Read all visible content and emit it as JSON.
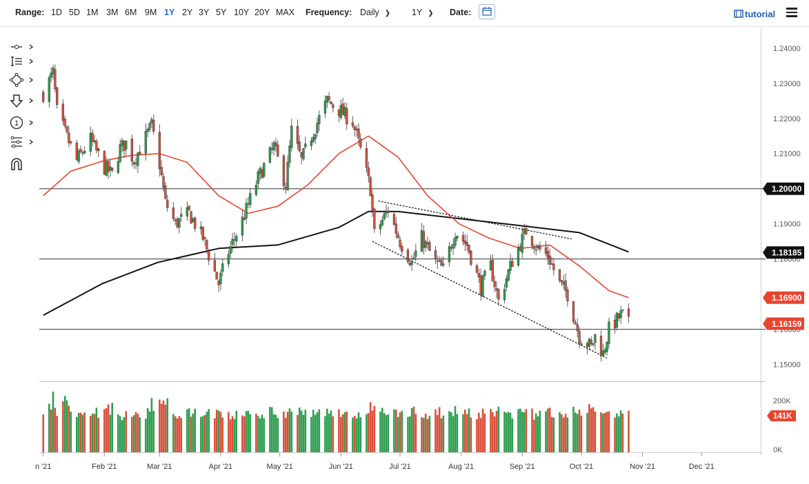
{
  "toolbar": {
    "range_label": "Range:",
    "ranges": [
      "1D",
      "5D",
      "1M",
      "3M",
      "6M",
      "9M",
      "1Y",
      "2Y",
      "3Y",
      "5Y",
      "10Y",
      "20Y",
      "MAX"
    ],
    "active_range": "1Y",
    "frequency_label": "Frequency:",
    "frequency_value": "Daily",
    "period_value": "1Y",
    "date_label": "Date:",
    "tutorial_label": "tutorial"
  },
  "drawing_tools": [
    "line-tool-icon",
    "pattern-tool-icon",
    "shape-tool-icon",
    "arrow-down-icon",
    "annotation-number-icon",
    "fibonacci-tool-icon",
    "magnet-icon"
  ],
  "chart_data": {
    "type": "candlestick",
    "instrument_colors": {
      "up": "#2e9e4f",
      "down": "#d9503b",
      "ma_fast": "#e8452f",
      "ma_slow": "#111111"
    },
    "price_axis": {
      "ylim": [
        1.1452,
        1.2435
      ],
      "ticks": [
        "1.24000",
        "1.23000",
        "1.22000",
        "1.21000",
        "1.20000",
        "1.19000",
        "1.18000",
        "1.17000",
        "1.16000",
        "1.15000"
      ]
    },
    "x_axis": {
      "xlim": [
        "2020-12-30",
        "2021-12-31"
      ],
      "labels": [
        {
          "date": "2021-01-01",
          "text": "n '21"
        },
        {
          "date": "2021-02-01",
          "text": "Feb '21"
        },
        {
          "date": "2021-03-01",
          "text": "Mar '21"
        },
        {
          "date": "2021-04-01",
          "text": "Apr '21"
        },
        {
          "date": "2021-05-01",
          "text": "May '21"
        },
        {
          "date": "2021-06-01",
          "text": "Jun '21"
        },
        {
          "date": "2021-07-01",
          "text": "Jul '21"
        },
        {
          "date": "2021-08-01",
          "text": "Aug '21"
        },
        {
          "date": "2021-09-01",
          "text": "Sep '21"
        },
        {
          "date": "2021-10-01",
          "text": "Oct '21"
        },
        {
          "date": "2021-11-01",
          "text": "Nov '21"
        },
        {
          "date": "2021-12-01",
          "text": "Dec '21"
        }
      ]
    },
    "close_path": [
      [
        "2021-01-01",
        1.227
      ],
      [
        "2021-01-06",
        1.233
      ],
      [
        "2021-01-08",
        1.222
      ],
      [
        "2021-01-12",
        1.216
      ],
      [
        "2021-01-18",
        1.208
      ],
      [
        "2021-01-25",
        1.214
      ],
      [
        "2021-02-01",
        1.206
      ],
      [
        "2021-02-05",
        1.204
      ],
      [
        "2021-02-09",
        1.2115
      ],
      [
        "2021-02-12",
        1.213
      ],
      [
        "2021-02-16",
        1.208
      ],
      [
        "2021-02-25",
        1.218
      ],
      [
        "2021-03-01",
        1.207
      ],
      [
        "2021-03-04",
        1.196
      ],
      [
        "2021-03-09",
        1.19
      ],
      [
        "2021-03-16",
        1.193
      ],
      [
        "2021-03-23",
        1.186
      ],
      [
        "2021-03-31",
        1.173
      ],
      [
        "2021-04-05",
        1.182
      ],
      [
        "2021-04-12",
        1.191
      ],
      [
        "2021-04-20",
        1.203
      ],
      [
        "2021-04-28",
        1.212
      ],
      [
        "2021-05-04",
        1.201
      ],
      [
        "2021-05-07",
        1.2165
      ],
      [
        "2021-05-12",
        1.208
      ],
      [
        "2021-05-17",
        1.215
      ],
      [
        "2021-05-25",
        1.225
      ],
      [
        "2021-06-01",
        1.222
      ],
      [
        "2021-06-07",
        1.219
      ],
      [
        "2021-06-11",
        1.211
      ],
      [
        "2021-06-16",
        1.2
      ],
      [
        "2021-06-18",
        1.187
      ],
      [
        "2021-06-25",
        1.194
      ],
      [
        "2021-07-01",
        1.185
      ],
      [
        "2021-07-07",
        1.179
      ],
      [
        "2021-07-12",
        1.186
      ],
      [
        "2021-07-19",
        1.179
      ],
      [
        "2021-07-23",
        1.177
      ],
      [
        "2021-07-29",
        1.188
      ],
      [
        "2021-08-04",
        1.184
      ],
      [
        "2021-08-11",
        1.172
      ],
      [
        "2021-08-16",
        1.178
      ],
      [
        "2021-08-20",
        1.168
      ],
      [
        "2021-08-27",
        1.1795
      ],
      [
        "2021-09-03",
        1.188
      ],
      [
        "2021-09-09",
        1.183
      ],
      [
        "2021-09-14",
        1.181
      ],
      [
        "2021-09-20",
        1.173
      ],
      [
        "2021-09-24",
        1.17
      ],
      [
        "2021-09-30",
        1.158
      ],
      [
        "2021-10-06",
        1.155
      ],
      [
        "2021-10-08",
        1.158
      ],
      [
        "2021-10-12",
        1.153
      ],
      [
        "2021-10-15",
        1.16
      ],
      [
        "2021-10-21",
        1.164
      ],
      [
        "2021-10-22",
        1.164
      ],
      [
        "2021-10-25",
        1.1616
      ]
    ],
    "ma_fast": [
      [
        "2021-01-01",
        1.198
      ],
      [
        "2021-01-15",
        1.205
      ],
      [
        "2021-02-01",
        1.208
      ],
      [
        "2021-02-15",
        1.2095
      ],
      [
        "2021-03-01",
        1.21
      ],
      [
        "2021-03-15",
        1.2075
      ],
      [
        "2021-03-31",
        1.198
      ],
      [
        "2021-04-15",
        1.193
      ],
      [
        "2021-04-30",
        1.195
      ],
      [
        "2021-05-15",
        1.201
      ],
      [
        "2021-05-31",
        1.21
      ],
      [
        "2021-06-15",
        1.215
      ],
      [
        "2021-06-30",
        1.209
      ],
      [
        "2021-07-15",
        1.198
      ],
      [
        "2021-07-31",
        1.19
      ],
      [
        "2021-08-15",
        1.186
      ],
      [
        "2021-08-31",
        1.183
      ],
      [
        "2021-09-15",
        1.184
      ],
      [
        "2021-09-30",
        1.178
      ],
      [
        "2021-10-15",
        1.171
      ],
      [
        "2021-10-25",
        1.169
      ]
    ],
    "ma_slow": [
      [
        "2021-01-01",
        1.164
      ],
      [
        "2021-01-31",
        1.173
      ],
      [
        "2021-02-28",
        1.179
      ],
      [
        "2021-03-31",
        1.183
      ],
      [
        "2021-04-30",
        1.184
      ],
      [
        "2021-05-31",
        1.189
      ],
      [
        "2021-06-15",
        1.1935
      ],
      [
        "2021-06-30",
        1.1935
      ],
      [
        "2021-07-31",
        1.1915
      ],
      [
        "2021-08-31",
        1.1895
      ],
      [
        "2021-09-30",
        1.1875
      ],
      [
        "2021-10-25",
        1.182
      ]
    ],
    "trendlines": [
      {
        "from": [
          "2021-06-17",
          1.185
        ],
        "to": [
          "2021-10-14",
          1.1518
        ]
      },
      {
        "from": [
          "2021-06-20",
          1.1965
        ],
        "to": [
          "2021-09-26",
          1.1857
        ]
      }
    ],
    "horizontal_lines": [
      1.2,
      1.18,
      1.16
    ],
    "price_labels": [
      {
        "value": 1.2,
        "text": "1.20000",
        "color": "#111111"
      },
      {
        "value": 1.18185,
        "text": "1.18185",
        "color": "#111111"
      },
      {
        "value": 1.169,
        "text": "1.16900",
        "color": "#e8452f"
      },
      {
        "value": 1.16159,
        "text": "1.16159",
        "color": "#e8452f"
      }
    ],
    "volume": {
      "ticks": [
        "200K",
        "0K"
      ],
      "max": 240000,
      "last_label": "141K",
      "bars": [
        [
          "2021-01-04",
          172000,
          "up"
        ],
        [
          "2021-01-05",
          158000,
          "down"
        ],
        [
          "2021-01-06",
          210000,
          "up"
        ],
        [
          "2021-01-07",
          150000,
          "down"
        ],
        [
          "2021-01-08",
          145000,
          "down"
        ],
        [
          "2021-01-12",
          190000,
          "up"
        ],
        [
          "2021-01-15",
          160000,
          "down"
        ],
        [
          "2021-01-20",
          145000,
          "up"
        ],
        [
          "2021-01-26",
          150000,
          "down"
        ],
        [
          "2021-02-01",
          152000,
          "down"
        ],
        [
          "2021-02-04",
          170000,
          "up"
        ],
        [
          "2021-02-09",
          145000,
          "up"
        ],
        [
          "2021-02-15",
          148000,
          "down"
        ],
        [
          "2021-02-22",
          150000,
          "up"
        ],
        [
          "2021-02-26",
          185000,
          "up"
        ],
        [
          "2021-03-02",
          215000,
          "down"
        ],
        [
          "2021-03-05",
          198000,
          "down"
        ],
        [
          "2021-03-10",
          150000,
          "down"
        ],
        [
          "2021-03-17",
          160000,
          "up"
        ],
        [
          "2021-03-24",
          148000,
          "down"
        ],
        [
          "2021-03-31",
          150000,
          "down"
        ],
        [
          "2021-04-06",
          140000,
          "up"
        ],
        [
          "2021-04-13",
          148000,
          "up"
        ],
        [
          "2021-04-20",
          150000,
          "up"
        ],
        [
          "2021-04-27",
          155000,
          "up"
        ],
        [
          "2021-05-04",
          148000,
          "down"
        ],
        [
          "2021-05-11",
          153000,
          "up"
        ],
        [
          "2021-05-18",
          155000,
          "up"
        ],
        [
          "2021-05-25",
          160000,
          "up"
        ],
        [
          "2021-06-01",
          150000,
          "down"
        ],
        [
          "2021-06-08",
          148000,
          "up"
        ],
        [
          "2021-06-14",
          152000,
          "down"
        ],
        [
          "2021-06-17",
          178000,
          "down"
        ],
        [
          "2021-06-21",
          160000,
          "up"
        ],
        [
          "2021-06-28",
          150000,
          "down"
        ],
        [
          "2021-07-05",
          155000,
          "up"
        ],
        [
          "2021-07-12",
          150000,
          "down"
        ],
        [
          "2021-07-19",
          153000,
          "down"
        ],
        [
          "2021-07-26",
          160000,
          "up"
        ],
        [
          "2021-08-02",
          148000,
          "down"
        ],
        [
          "2021-08-09",
          150000,
          "down"
        ],
        [
          "2021-08-16",
          146000,
          "down"
        ],
        [
          "2021-08-23",
          155000,
          "up"
        ],
        [
          "2021-08-30",
          150000,
          "up"
        ],
        [
          "2021-09-06",
          148000,
          "down"
        ],
        [
          "2021-09-13",
          150000,
          "down"
        ],
        [
          "2021-09-20",
          152000,
          "down"
        ],
        [
          "2021-09-27",
          158000,
          "up"
        ],
        [
          "2021-10-01",
          165000,
          "up"
        ],
        [
          "2021-10-06",
          168000,
          "down"
        ],
        [
          "2021-10-12",
          155000,
          "down"
        ],
        [
          "2021-10-18",
          148000,
          "up"
        ],
        [
          "2021-10-25",
          141000,
          "down"
        ]
      ]
    }
  }
}
